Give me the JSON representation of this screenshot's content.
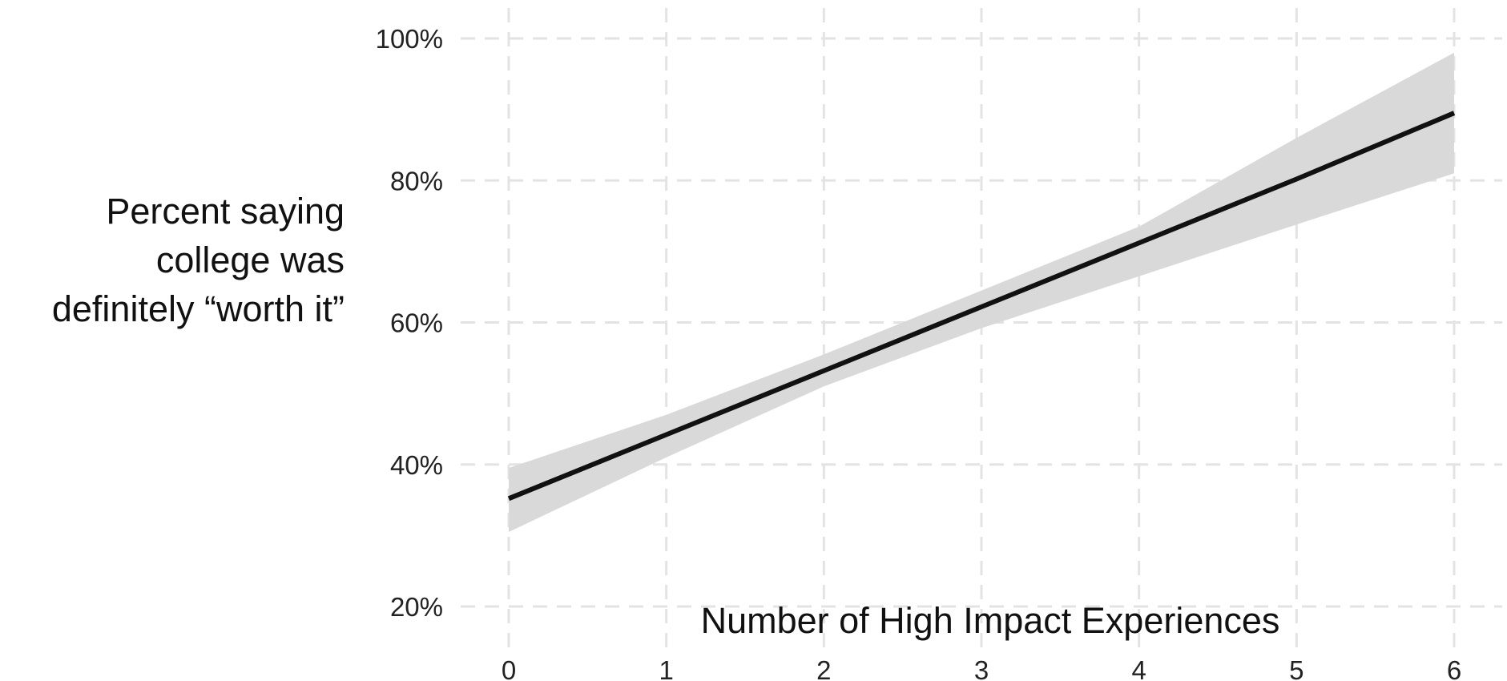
{
  "chart_data": {
    "type": "line",
    "xlabel": "Number of High Impact Experiences",
    "ylabel_lines": [
      "Percent saying",
      "college was",
      "definitely “worth it”"
    ],
    "x_ticks": [
      0,
      1,
      2,
      3,
      4,
      5,
      6
    ],
    "x_tick_labels": [
      "0",
      "1",
      "2",
      "3",
      "4",
      "5",
      "6"
    ],
    "y_ticks": [
      20,
      40,
      60,
      80,
      100
    ],
    "y_tick_labels": [
      "20%",
      "40%",
      "60%",
      "80%",
      "100%"
    ],
    "xlim": [
      0,
      6
    ],
    "ylim": [
      20,
      100
    ],
    "grid": true,
    "grid_style": "dashed",
    "series": [
      {
        "x": [
          0,
          1,
          2,
          3,
          4,
          5,
          6
        ],
        "y": [
          35.2,
          44.2,
          53.2,
          62.2,
          71.2,
          80.2,
          89.5
        ],
        "ci_lower": [
          30.5,
          41.0,
          51.0,
          59.2,
          66.5,
          73.8,
          81.0
        ],
        "ci_upper": [
          39.5,
          47.0,
          55.5,
          64.5,
          73.5,
          86.0,
          98.0
        ],
        "line_color": "#111111",
        "band_color": "#d9d9d9"
      }
    ],
    "gridline_color": "#e3e3e3"
  }
}
